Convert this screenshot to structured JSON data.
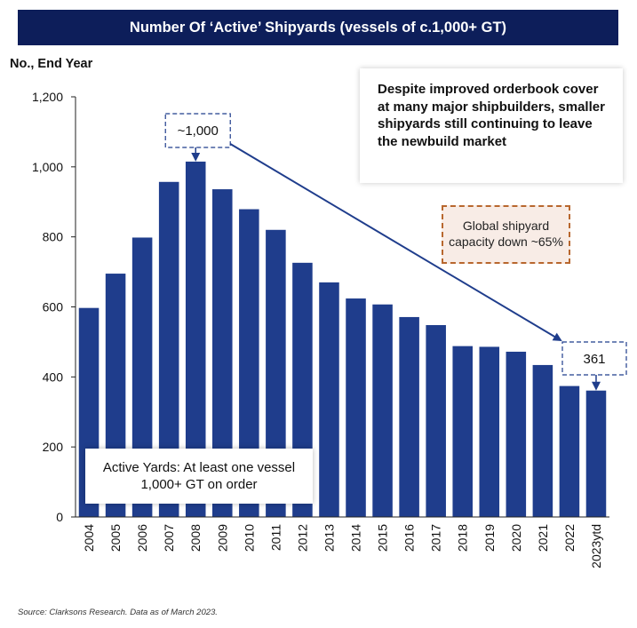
{
  "chart_data": {
    "type": "bar",
    "title": "Number Of ‘Active’ Shipyards (vessels of c.1,000+ GT)",
    "ylabel": "No., End Year",
    "xlabel": "",
    "categories": [
      "2004",
      "2005",
      "2006",
      "2007",
      "2008",
      "2009",
      "2010",
      "2011",
      "2012",
      "2013",
      "2014",
      "2015",
      "2016",
      "2017",
      "2018",
      "2019",
      "2020",
      "2021",
      "2022",
      "2023ytd"
    ],
    "values": [
      597,
      695,
      798,
      957,
      1015,
      936,
      879,
      820,
      726,
      670,
      624,
      607,
      571,
      548,
      488,
      486,
      472,
      434,
      374,
      361
    ],
    "ylim": [
      0,
      1200
    ],
    "yticks": [
      0,
      200,
      400,
      600,
      800,
      1000,
      1200
    ],
    "ytick_labels": [
      "0",
      "200",
      "400",
      "600",
      "800",
      "1,000",
      "1,200"
    ],
    "bar_color": "#1f3d8c",
    "grid": false,
    "annotations": {
      "peak_label": "~1,000",
      "latest_label": "361",
      "commentary": "Despite improved orderbook cover at many major shipbuilders, smaller shipyards still continuing to leave the newbuild market",
      "capacity_note": "Global shipyard capacity down ~65%",
      "definition": "Active Yards: At least one vessel 1,000+ GT on order"
    },
    "source": "Source: Clarksons Research. Data as of March 2023."
  },
  "colors": {
    "title_background": "#0d1e5a",
    "arrow": "#1f3d8c",
    "capacity_border": "#b8672e",
    "capacity_fill": "#f8ece6"
  }
}
